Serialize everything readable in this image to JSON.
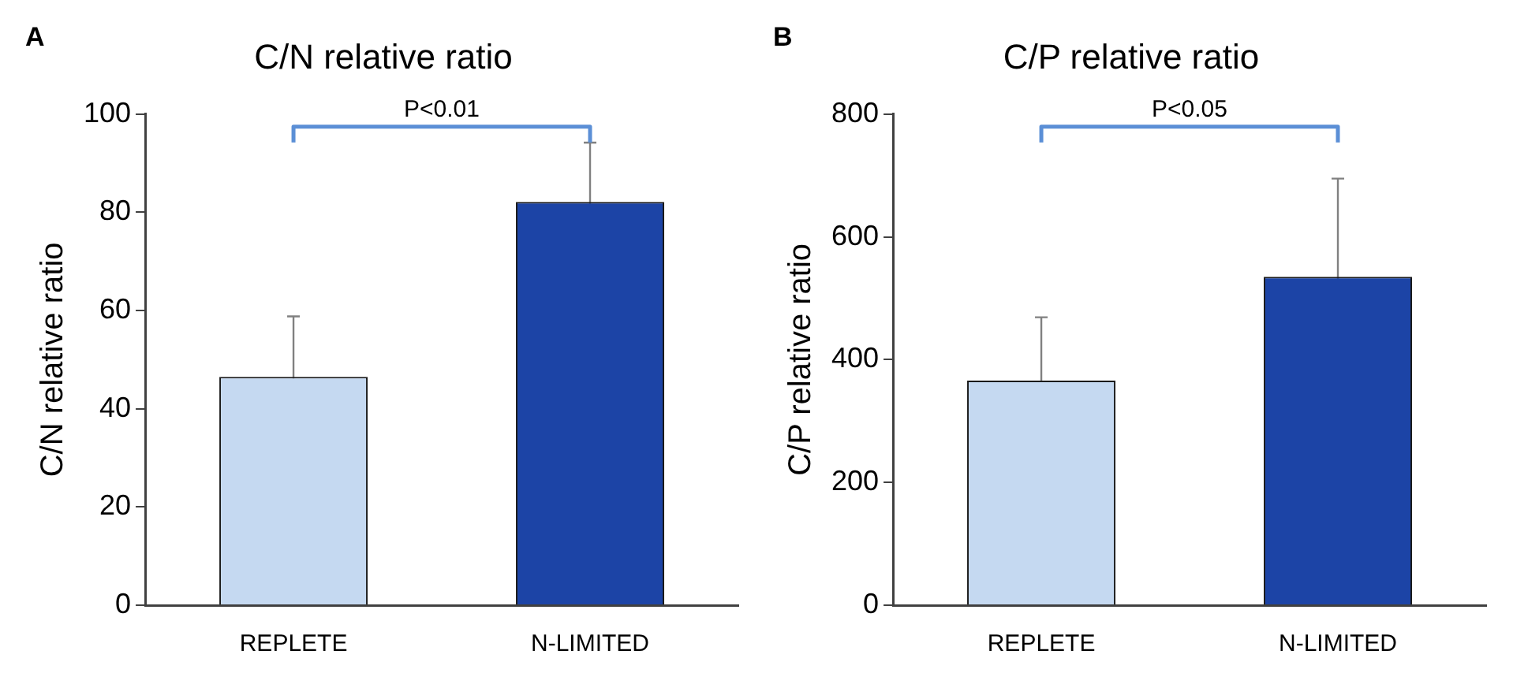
{
  "chart_data": [
    {
      "type": "bar",
      "title": "C/N relative ratio",
      "ylabel": "C/N relative ratio",
      "categories": [
        "REPLETE",
        "N-LIMITED"
      ],
      "values": [
        46.5,
        82.1
      ],
      "colors": [
        "#c5d9f1",
        "#1c44a6"
      ],
      "errors": [
        12.3,
        12.1
      ],
      "ylim": [
        0,
        100
      ],
      "yticks": [
        0,
        20,
        40,
        60,
        80,
        100
      ],
      "grid": false,
      "legend": false,
      "annotations": [
        "A",
        "P<0.01"
      ]
    },
    {
      "type": "bar",
      "title": "C/P relative ratio",
      "ylabel": "C/P relative ratio",
      "categories": [
        "REPLETE",
        "N-LIMITED"
      ],
      "values": [
        366,
        535
      ],
      "colors": [
        "#c5d9f1",
        "#1c44a6"
      ],
      "errors": [
        103,
        160
      ],
      "ylim": [
        0,
        800
      ],
      "yticks": [
        0,
        200,
        400,
        600,
        800
      ],
      "grid": false,
      "legend": false,
      "annotations": [
        "B",
        "P<0.05"
      ]
    }
  ]
}
